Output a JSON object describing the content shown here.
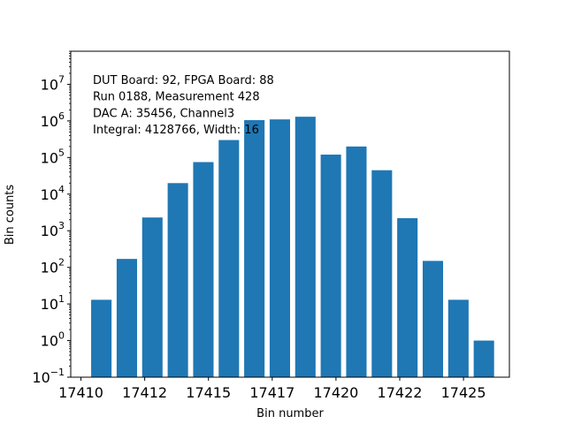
{
  "chart_data": {
    "type": "bar",
    "title": "",
    "xlabel": "Bin number",
    "ylabel": "Bin counts",
    "yscale": "log",
    "ylim": [
      0.1,
      80000000
    ],
    "xlim": [
      17409.8,
      17427.0
    ],
    "x": [
      17411,
      17412,
      17413,
      17414,
      17415,
      17416,
      17417,
      17418,
      17419,
      17420,
      17421,
      17422,
      17423,
      17424,
      17425,
      17426
    ],
    "values": [
      13,
      170,
      2300,
      20000,
      75000,
      300000,
      1050000,
      1100000,
      1300000,
      120000,
      200000,
      45000,
      2200,
      150,
      13,
      1
    ],
    "bar_color": "#1f77b4",
    "x_ticks": [
      {
        "value": 17410.2,
        "label": "17410"
      },
      {
        "value": 17412.7,
        "label": "17412"
      },
      {
        "value": 17415.2,
        "label": "17415"
      },
      {
        "value": 17417.7,
        "label": "17417"
      },
      {
        "value": 17420.2,
        "label": "17420"
      },
      {
        "value": 17422.7,
        "label": "17422"
      },
      {
        "value": 17425.2,
        "label": "17425"
      }
    ],
    "y_ticks": [
      {
        "exp": -1,
        "base": "10",
        "sup": "−1"
      },
      {
        "exp": 0,
        "base": "10",
        "sup": "0"
      },
      {
        "exp": 1,
        "base": "10",
        "sup": "1"
      },
      {
        "exp": 2,
        "base": "10",
        "sup": "2"
      },
      {
        "exp": 3,
        "base": "10",
        "sup": "3"
      },
      {
        "exp": 4,
        "base": "10",
        "sup": "4"
      },
      {
        "exp": 5,
        "base": "10",
        "sup": "5"
      },
      {
        "exp": 6,
        "base": "10",
        "sup": "6"
      },
      {
        "exp": 7,
        "base": "10",
        "sup": "7"
      }
    ],
    "annotations": [
      "DUT Board: 92, FPGA Board: 88",
      "Run 0188, Measurement 428",
      "DAC A: 35456, Channel3",
      "Integral: 4128766, Width: 16"
    ]
  }
}
